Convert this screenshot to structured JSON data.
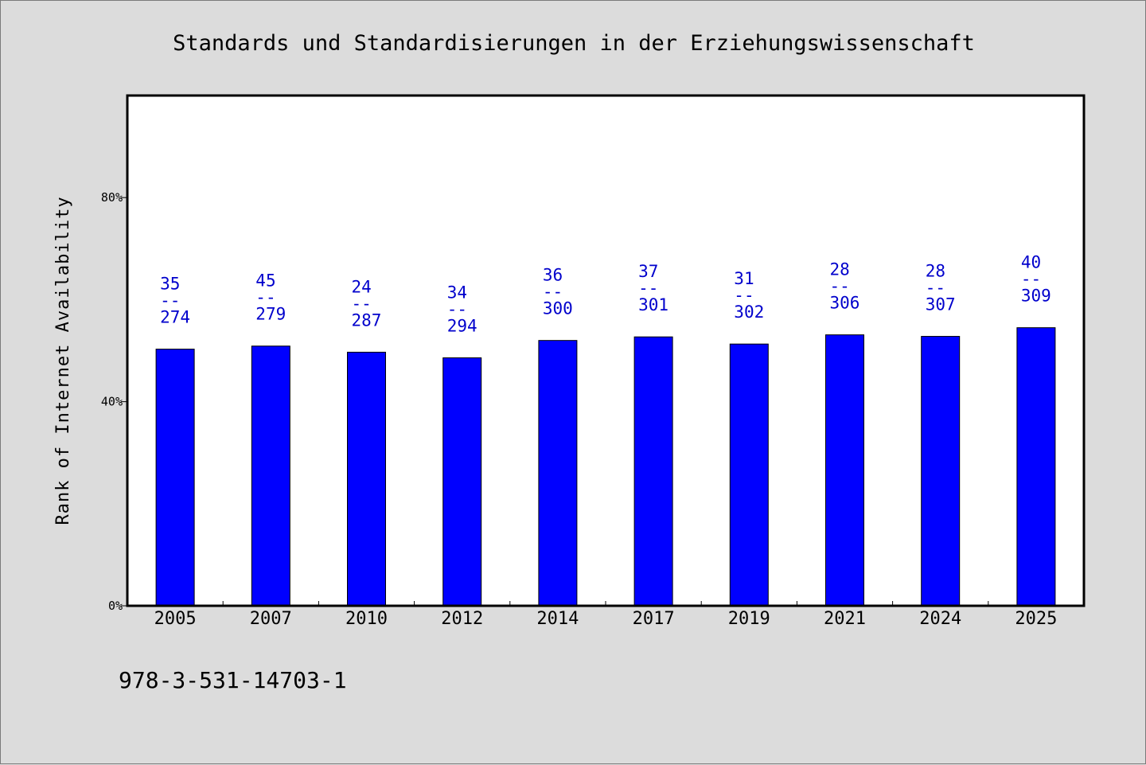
{
  "chart_data": {
    "type": "bar",
    "title": "Standards und Standardisierungen in der Erziehungswissenschaft",
    "xlabel": "",
    "ylabel": "Rank of Internet Availability",
    "ylim": [
      0,
      100
    ],
    "y_ticks": [
      {
        "value": 0,
        "label": "0%"
      },
      {
        "value": 40,
        "label": "40%"
      },
      {
        "value": 80,
        "label": "80%"
      }
    ],
    "categories": [
      "2005",
      "2007",
      "2010",
      "2012",
      "2014",
      "2017",
      "2019",
      "2021",
      "2024",
      "2025"
    ],
    "values": [
      50.3,
      50.9,
      49.7,
      48.6,
      52.0,
      52.7,
      51.3,
      53.1,
      52.8,
      54.5
    ],
    "data_labels": [
      {
        "top": "35",
        "sep": "--",
        "bottom": "274"
      },
      {
        "top": "45",
        "sep": "--",
        "bottom": "279"
      },
      {
        "top": "24",
        "sep": "--",
        "bottom": "287"
      },
      {
        "top": "34",
        "sep": "--",
        "bottom": "294"
      },
      {
        "top": "36",
        "sep": "--",
        "bottom": "300"
      },
      {
        "top": "37",
        "sep": "--",
        "bottom": "301"
      },
      {
        "top": "31",
        "sep": "--",
        "bottom": "302"
      },
      {
        "top": "28",
        "sep": "--",
        "bottom": "306"
      },
      {
        "top": "28",
        "sep": "--",
        "bottom": "307"
      },
      {
        "top": "40",
        "sep": "--",
        "bottom": "309"
      }
    ],
    "bar_color": "#0000ff",
    "label_color": "#0000cc",
    "grid": false,
    "legend": "none"
  },
  "footer": {
    "isbn": "978-3-531-14703-1"
  }
}
